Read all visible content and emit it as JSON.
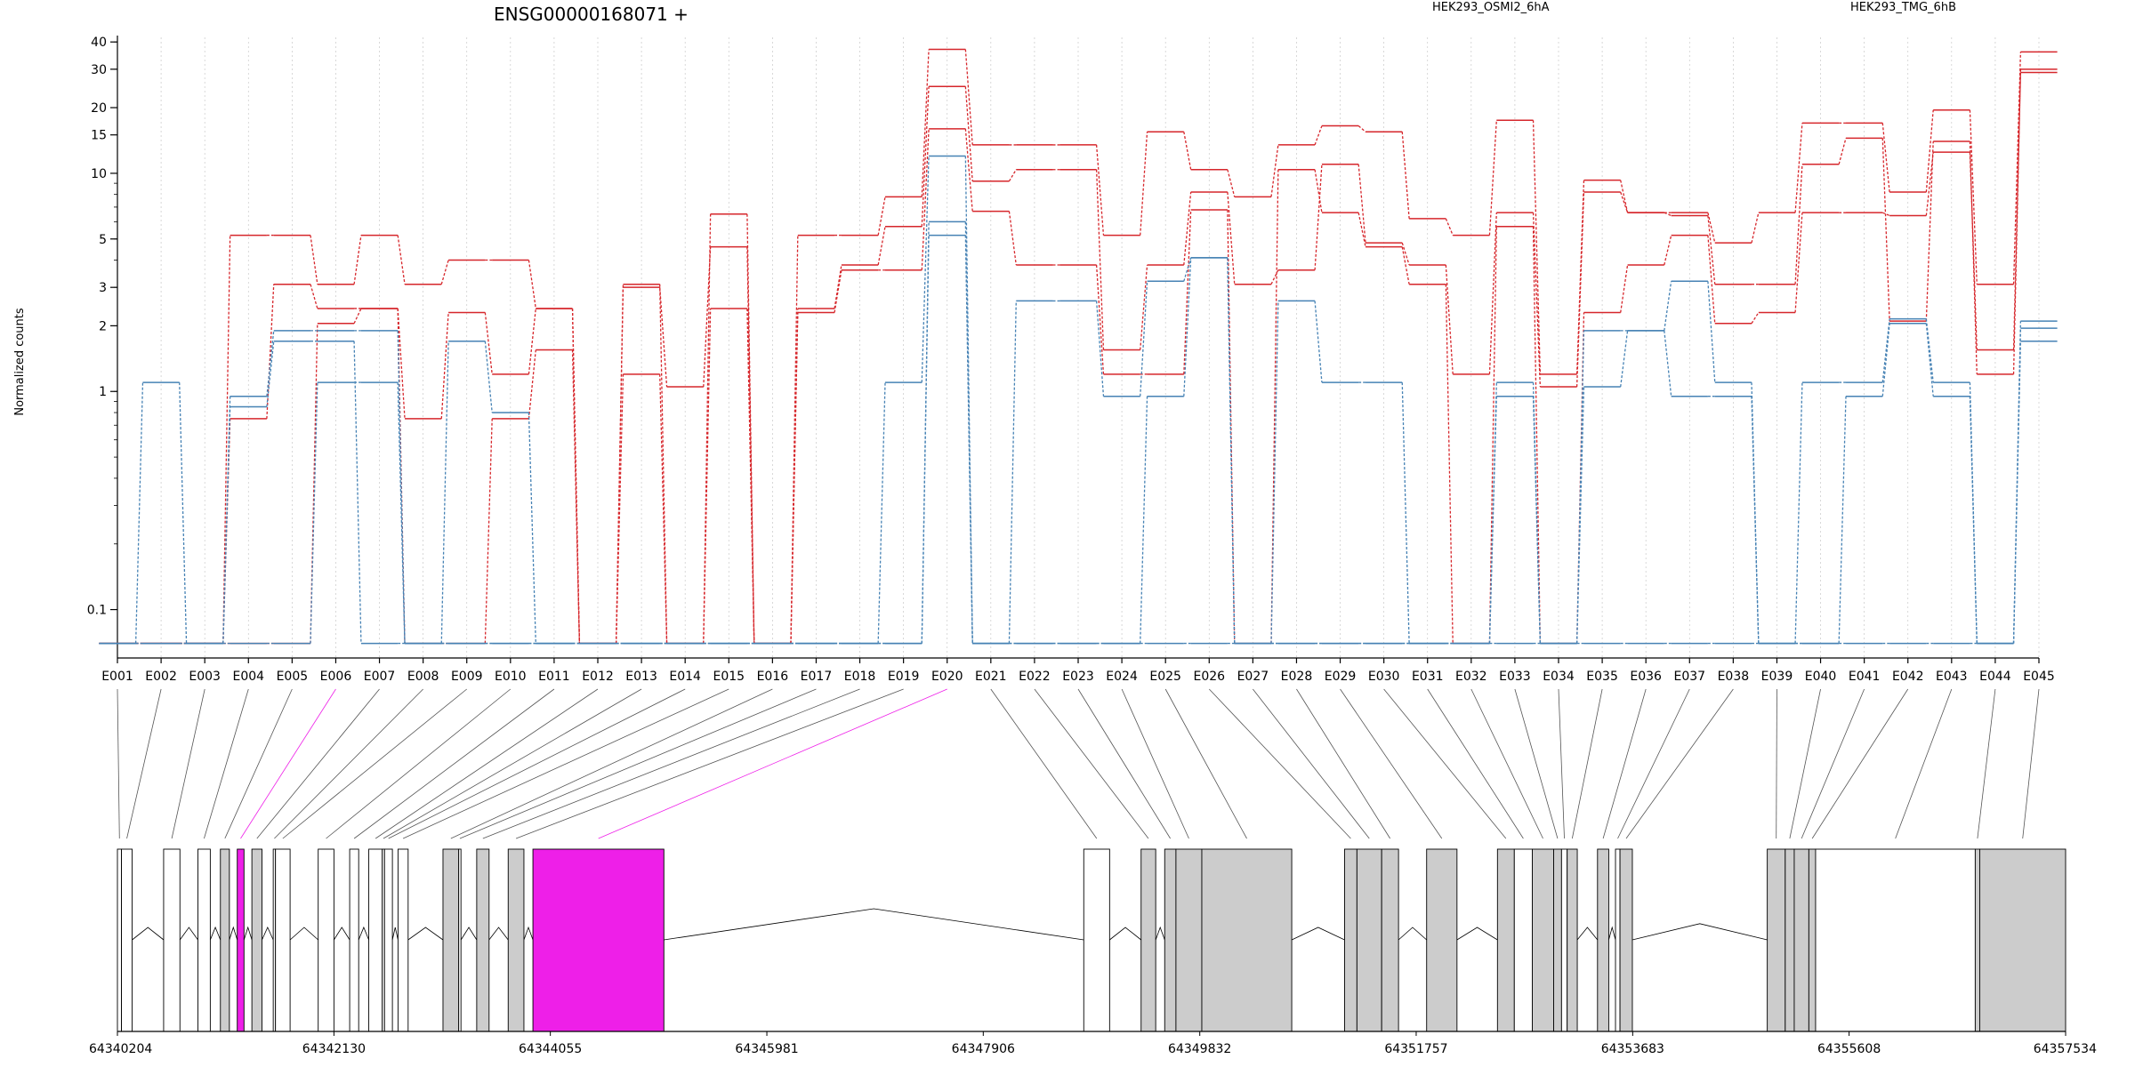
{
  "chart_data": {
    "type": "line",
    "title": "ENSG00000168071 +",
    "ylabel": "Normalized counts",
    "yscale": "log",
    "ylim": [
      0.06,
      42
    ],
    "yticks": [
      0.1,
      1,
      2,
      3,
      5,
      10,
      15,
      20,
      30,
      40
    ],
    "grid": "vertical dotted lines at each exon",
    "legend_placement": "top-right",
    "highlight_color": "#ee1fe8",
    "categories": [
      "E001",
      "E002",
      "E003",
      "E004",
      "E005",
      "E006",
      "E007",
      "E008",
      "E009",
      "E010",
      "E011",
      "E012",
      "E013",
      "E014",
      "E015",
      "E016",
      "E017",
      "E018",
      "E019",
      "E020",
      "E021",
      "E022",
      "E023",
      "E024",
      "E025",
      "E026",
      "E027",
      "E028",
      "E029",
      "E030",
      "E031",
      "E032",
      "E033",
      "E034",
      "E035",
      "E036",
      "E037",
      "E038",
      "E039",
      "E040",
      "E041",
      "E042",
      "E043",
      "E044",
      "E045"
    ],
    "groups": [
      {
        "name": "HEK293_OSMI2_6hA",
        "color": "#d6262b"
      },
      {
        "name": "HEK293_TMG_6hB",
        "color": "#4682b4"
      }
    ],
    "series": [
      {
        "group": "HEK293_OSMI2_6hA",
        "values": [
          0.07,
          0.07,
          0.07,
          5.2,
          5.2,
          3.1,
          5.2,
          3.1,
          4.0,
          4.0,
          2.4,
          0.07,
          3.1,
          0.07,
          6.5,
          0.07,
          5.2,
          5.2,
          7.8,
          37,
          13.5,
          13.5,
          13.5,
          5.2,
          15.5,
          10.4,
          7.8,
          13.5,
          16.5,
          15.5,
          6.2,
          5.2,
          17.5,
          1.2,
          9.3,
          6.6,
          6.6,
          4.8,
          6.6,
          17.0,
          17.0,
          8.2,
          19.5,
          3.1,
          36
        ]
      },
      {
        "group": "HEK293_OSMI2_6hA",
        "values": [
          0.07,
          0.07,
          0.07,
          0.75,
          3.1,
          2.4,
          2.4,
          0.75,
          2.3,
          1.2,
          2.4,
          0.07,
          3.0,
          1.05,
          4.6,
          0.07,
          2.4,
          3.8,
          5.7,
          25,
          9.2,
          10.4,
          10.4,
          1.55,
          3.8,
          8.2,
          3.1,
          3.6,
          11.0,
          4.8,
          3.8,
          1.2,
          6.6,
          1.05,
          8.2,
          6.6,
          6.4,
          3.1,
          3.1,
          11.0,
          14.5,
          2.1,
          14.0,
          1.2,
          30
        ]
      },
      {
        "group": "HEK293_OSMI2_6hA",
        "values": [
          0.07,
          0.07,
          0.07,
          0.07,
          0.07,
          2.05,
          2.4,
          0.07,
          0.07,
          0.75,
          1.55,
          0.07,
          1.2,
          0.07,
          2.4,
          0.07,
          2.3,
          3.6,
          3.6,
          16,
          6.7,
          3.8,
          3.8,
          1.2,
          1.2,
          6.8,
          0.07,
          10.4,
          6.6,
          4.6,
          3.1,
          0.07,
          5.7,
          0.07,
          2.3,
          3.8,
          5.2,
          2.05,
          2.3,
          6.6,
          6.6,
          6.4,
          12.5,
          1.55,
          29
        ]
      },
      {
        "group": "HEK293_TMG_6hB",
        "values": [
          0.07,
          1.1,
          0.07,
          0.95,
          1.9,
          1.9,
          1.9,
          0.07,
          1.7,
          0.8,
          0.07,
          0.07,
          0.07,
          0.07,
          0.07,
          0.07,
          0.07,
          0.07,
          1.1,
          12.0,
          0.07,
          2.6,
          2.6,
          0.95,
          3.2,
          4.1,
          0.07,
          2.6,
          1.1,
          1.1,
          0.07,
          0.07,
          1.1,
          0.07,
          1.9,
          1.9,
          3.2,
          1.1,
          0.07,
          1.1,
          1.1,
          2.15,
          1.1,
          0.07,
          2.1
        ]
      },
      {
        "group": "HEK293_TMG_6hB",
        "values": [
          0.07,
          0.07,
          0.07,
          0.85,
          1.7,
          1.7,
          0.07,
          0.07,
          0.07,
          0.07,
          0.07,
          0.07,
          0.07,
          0.07,
          0.07,
          0.07,
          0.07,
          0.07,
          0.07,
          6.0,
          0.07,
          0.07,
          0.07,
          0.07,
          0.95,
          4.1,
          0.07,
          0.07,
          0.07,
          0.07,
          0.07,
          0.07,
          0.95,
          0.07,
          1.05,
          1.9,
          0.95,
          0.95,
          0.07,
          0.07,
          0.95,
          2.05,
          0.95,
          0.07,
          1.95
        ]
      },
      {
        "group": "HEK293_TMG_6hB",
        "values": [
          0.07,
          0.07,
          0.07,
          0.07,
          0.07,
          1.1,
          1.1,
          0.07,
          0.07,
          0.07,
          0.07,
          0.07,
          0.07,
          0.07,
          0.07,
          0.07,
          0.07,
          0.07,
          0.07,
          5.2,
          0.07,
          0.07,
          0.07,
          0.07,
          0.07,
          0.07,
          0.07,
          0.07,
          0.07,
          0.07,
          0.07,
          0.07,
          0.07,
          0.07,
          0.07,
          0.07,
          0.07,
          0.07,
          0.07,
          0.07,
          0.07,
          0.07,
          0.07,
          0.07,
          1.7
        ]
      }
    ],
    "highlighted_exons": [
      "E006",
      "E020"
    ],
    "gene_model": {
      "coord_range": [
        64340204,
        64357534
      ],
      "ticks": [
        64340204,
        64342130,
        64344055,
        64345981,
        64347906,
        64349832,
        64351757,
        64353683,
        64355608,
        64357534
      ],
      "exons": [
        {
          "id": "E001",
          "start": 64340204,
          "end": 64340240,
          "filled": false
        },
        {
          "id": "E002",
          "start": 64340240,
          "end": 64340335,
          "filled": false
        },
        {
          "id": "E003",
          "start": 64340615,
          "end": 64340760,
          "filled": false
        },
        {
          "id": "E004",
          "start": 64340920,
          "end": 64341030,
          "filled": false
        },
        {
          "id": "E005",
          "start": 64341120,
          "end": 64341200,
          "filled": true
        },
        {
          "id": "E006",
          "start": 64341270,
          "end": 64341330,
          "filled": true,
          "highlight": true
        },
        {
          "id": "E007",
          "start": 64341400,
          "end": 64341490,
          "filled": true
        },
        {
          "id": "E008",
          "start": 64341590,
          "end": 64341610,
          "filled": false
        },
        {
          "id": "E009",
          "start": 64341610,
          "end": 64341740,
          "filled": false
        },
        {
          "id": "E010",
          "start": 64341990,
          "end": 64342130,
          "filled": false
        },
        {
          "id": "E011",
          "start": 64342270,
          "end": 64342350,
          "filled": false
        },
        {
          "id": "E012",
          "start": 64342440,
          "end": 64342560,
          "filled": false
        },
        {
          "id": "E013",
          "start": 64342560,
          "end": 64342580,
          "filled": false
        },
        {
          "id": "E014",
          "start": 64342580,
          "end": 64342650,
          "filled": false
        },
        {
          "id": "E015",
          "start": 64342700,
          "end": 64342790,
          "filled": false
        },
        {
          "id": "E016",
          "start": 64343100,
          "end": 64343240,
          "filled": true
        },
        {
          "id": "E017",
          "start": 64343240,
          "end": 64343260,
          "filled": false
        },
        {
          "id": "E018",
          "start": 64343400,
          "end": 64343510,
          "filled": true
        },
        {
          "id": "E019",
          "start": 64343680,
          "end": 64343820,
          "filled": true
        },
        {
          "id": "E020",
          "start": 64343900,
          "end": 64345065,
          "filled": true,
          "highlight": true
        },
        {
          "id": "E021",
          "start": 64348800,
          "end": 64349030,
          "filled": false
        },
        {
          "id": "E022",
          "start": 64349310,
          "end": 64349440,
          "filled": true
        },
        {
          "id": "E023",
          "start": 64349520,
          "end": 64349620,
          "filled": true
        },
        {
          "id": "E024",
          "start": 64349620,
          "end": 64349850,
          "filled": true
        },
        {
          "id": "E025",
          "start": 64349850,
          "end": 64350650,
          "filled": true
        },
        {
          "id": "E026",
          "start": 64351120,
          "end": 64351230,
          "filled": true
        },
        {
          "id": "E027",
          "start": 64351230,
          "end": 64351450,
          "filled": true
        },
        {
          "id": "E028",
          "start": 64351450,
          "end": 64351600,
          "filled": true
        },
        {
          "id": "E029",
          "start": 64351850,
          "end": 64352120,
          "filled": true
        },
        {
          "id": "E030",
          "start": 64352480,
          "end": 64352630,
          "filled": true
        },
        {
          "id": "E031",
          "start": 64352630,
          "end": 64352790,
          "filled": false
        },
        {
          "id": "E032",
          "start": 64352790,
          "end": 64352980,
          "filled": true
        },
        {
          "id": "E033",
          "start": 64352980,
          "end": 64353050,
          "filled": true
        },
        {
          "id": "E034",
          "start": 64353050,
          "end": 64353100,
          "filled": false
        },
        {
          "id": "E035",
          "start": 64353100,
          "end": 64353190,
          "filled": true
        },
        {
          "id": "E036",
          "start": 64353370,
          "end": 64353470,
          "filled": true
        },
        {
          "id": "E037",
          "start": 64353530,
          "end": 64353570,
          "filled": false
        },
        {
          "id": "E038",
          "start": 64353570,
          "end": 64353680,
          "filled": true
        },
        {
          "id": "E039",
          "start": 64354880,
          "end": 64355040,
          "filled": true
        },
        {
          "id": "E040",
          "start": 64355040,
          "end": 64355120,
          "filled": true
        },
        {
          "id": "E041",
          "start": 64355120,
          "end": 64355250,
          "filled": true
        },
        {
          "id": "E042",
          "start": 64355250,
          "end": 64355310,
          "filled": true
        },
        {
          "id": "E043",
          "start": 64355310,
          "end": 64356730,
          "filled": false
        },
        {
          "id": "E044",
          "start": 64356730,
          "end": 64356770,
          "filled": true
        },
        {
          "id": "E045",
          "start": 64356770,
          "end": 64357534,
          "filled": true
        }
      ]
    }
  }
}
